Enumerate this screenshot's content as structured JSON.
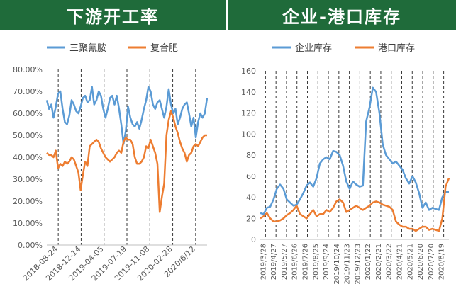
{
  "chart_data": [
    {
      "type": "line",
      "title": "下游开工率",
      "xlabel": "",
      "ylabel": "",
      "ylim": [
        0,
        0.8
      ],
      "y_ticks": [
        "0.00%",
        "10.00%",
        "20.00%",
        "30.00%",
        "40.00%",
        "50.00%",
        "60.00%",
        "70.00%",
        "80.00%"
      ],
      "y_tick_values": [
        0,
        0.1,
        0.2,
        0.3,
        0.4,
        0.5,
        0.6,
        0.7,
        0.8
      ],
      "x_tick_labels": [
        "2018-08-24",
        "2018-12-14",
        "2019-04-05",
        "2019-07-19",
        "2019-11-08",
        "2020-02-28",
        "2020/6/12"
      ],
      "grid": "vertical dashed",
      "legend_position": "top",
      "colors": {
        "series_1": "#5b9bd5",
        "series_2": "#ed7d31",
        "banner": "#1f6b3a"
      },
      "series": [
        {
          "name": "三聚氰胺",
          "values": [
            0.66,
            0.62,
            0.64,
            0.58,
            0.63,
            0.69,
            0.7,
            0.62,
            0.56,
            0.55,
            0.59,
            0.66,
            0.64,
            0.61,
            0.6,
            0.63,
            0.67,
            0.68,
            0.65,
            0.66,
            0.72,
            0.64,
            0.66,
            0.7,
            0.68,
            0.62,
            0.58,
            0.62,
            0.67,
            0.68,
            0.64,
            0.68,
            0.62,
            0.55,
            0.46,
            0.52,
            0.63,
            0.58,
            0.55,
            0.54,
            0.56,
            0.53,
            0.57,
            0.62,
            0.66,
            0.72,
            0.7,
            0.64,
            0.62,
            0.65,
            0.66,
            0.62,
            0.58,
            0.63,
            0.71,
            0.64,
            0.6,
            0.62,
            0.55,
            0.58,
            0.62,
            0.64,
            0.65,
            0.6,
            0.54,
            0.58,
            0.49,
            0.56,
            0.6,
            0.58,
            0.6,
            0.67
          ]
        },
        {
          "name": "复合肥",
          "values": [
            0.42,
            0.41,
            0.41,
            0.4,
            0.43,
            0.35,
            0.37,
            0.36,
            0.38,
            0.37,
            0.38,
            0.4,
            0.39,
            0.36,
            0.33,
            0.25,
            0.32,
            0.38,
            0.36,
            0.45,
            0.46,
            0.47,
            0.48,
            0.47,
            0.44,
            0.42,
            0.4,
            0.39,
            0.38,
            0.39,
            0.4,
            0.42,
            0.43,
            0.42,
            0.47,
            0.49,
            0.48,
            0.48,
            0.46,
            0.4,
            0.37,
            0.37,
            0.38,
            0.4,
            0.45,
            0.44,
            0.48,
            0.45,
            0.42,
            0.37,
            0.15,
            0.22,
            0.28,
            0.5,
            0.57,
            0.61,
            0.58,
            0.54,
            0.51,
            0.47,
            0.44,
            0.42,
            0.38,
            0.41,
            0.42,
            0.45,
            0.46,
            0.45,
            0.47,
            0.49,
            0.5,
            0.5
          ]
        }
      ]
    },
    {
      "type": "line",
      "title": "企业-港口库存",
      "xlabel": "",
      "ylabel": "",
      "ylim": [
        0,
        160
      ],
      "y_ticks": [
        "0",
        "20",
        "40",
        "60",
        "80",
        "100",
        "120",
        "140",
        "160"
      ],
      "y_tick_values": [
        0,
        20,
        40,
        60,
        80,
        100,
        120,
        140,
        160
      ],
      "x_tick_labels": [
        "2019/3/28",
        "2019/4/27",
        "2019/5/27",
        "2019/6/26",
        "2019/7/26",
        "2019/8/25",
        "2019/9/24",
        "2019/10/24",
        "2019/11/23",
        "2019/12/23",
        "2020/1/22",
        "2020/2/21",
        "2020/3/22",
        "2020/4/21",
        "2020/5/21",
        "2020/6/20",
        "2020/7/20",
        "2020/8/19"
      ],
      "grid": "vertical dashed",
      "legend_position": "top",
      "colors": {
        "series_1": "#5b9bd5",
        "series_2": "#ed7d31",
        "banner": "#1f6b3a"
      },
      "series": [
        {
          "name": "企业库存",
          "values": [
            25,
            24,
            30,
            31,
            38,
            48,
            52,
            48,
            38,
            35,
            32,
            33,
            38,
            44,
            51,
            54,
            50,
            58,
            72,
            76,
            78,
            76,
            84,
            83,
            80,
            70,
            55,
            48,
            55,
            52,
            50,
            51,
            112,
            125,
            144,
            140,
            120,
            90,
            80,
            76,
            72,
            74,
            70,
            66,
            58,
            53,
            60,
            54,
            44,
            30,
            35,
            28,
            30,
            29,
            28,
            40,
            45,
            45
          ]
        },
        {
          "name": "港口库存",
          "values": [
            20,
            22,
            25,
            20,
            17,
            17,
            18,
            20,
            23,
            25,
            28,
            32,
            24,
            22,
            20,
            24,
            28,
            22,
            24,
            24,
            28,
            26,
            30,
            36,
            38,
            35,
            26,
            28,
            30,
            32,
            30,
            28,
            30,
            32,
            35,
            36,
            35,
            33,
            32,
            31,
            28,
            17,
            14,
            12,
            12,
            10,
            10,
            8,
            10,
            12,
            12,
            9,
            10,
            9,
            8,
            20,
            50,
            58
          ]
        }
      ]
    }
  ]
}
